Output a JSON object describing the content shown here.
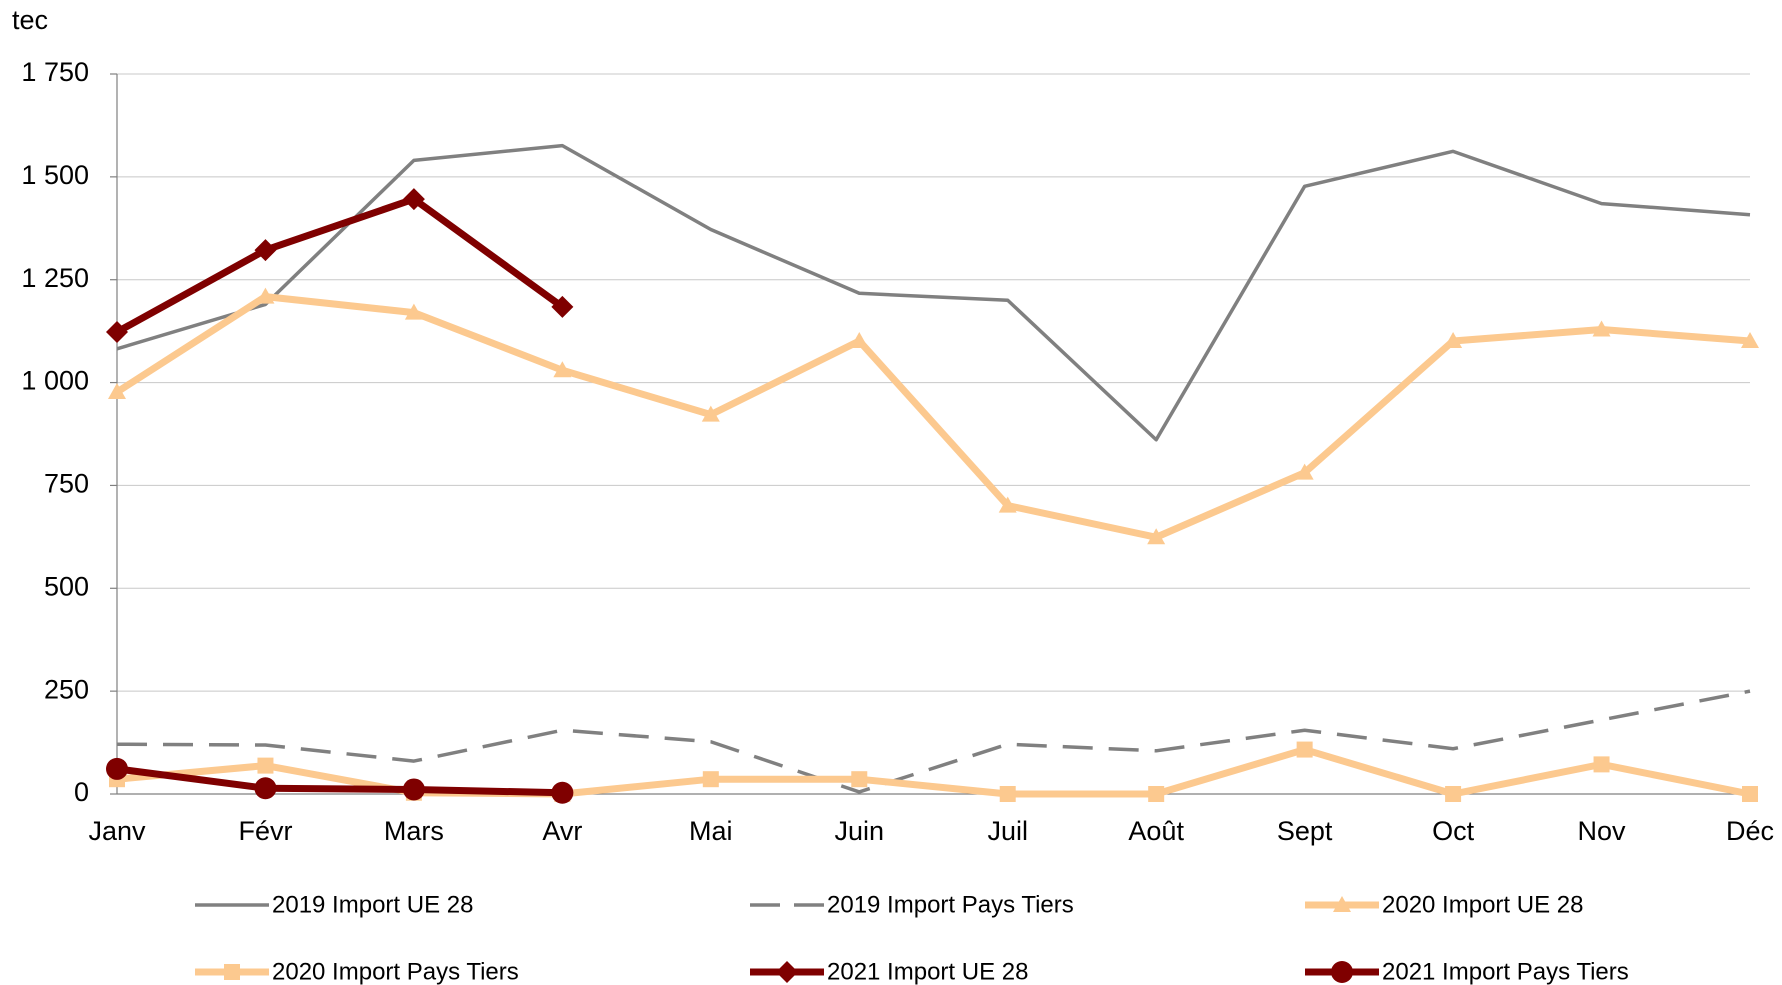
{
  "chart_data": {
    "type": "line",
    "y_label": "tec",
    "categories": [
      "Janv",
      "Févr",
      "Mars",
      "Avr",
      "Mai",
      "Juin",
      "Juil",
      "Août",
      "Sept",
      "Oct",
      "Nov",
      "Déc"
    ],
    "ylim": [
      0,
      1750
    ],
    "yticks": [
      0,
      250,
      500,
      750,
      {
        "value": 1000,
        "label": "1 000"
      },
      {
        "value": 1250,
        "label": "1 250"
      },
      {
        "value": 1500,
        "label": "1 500"
      },
      {
        "value": 1750,
        "label": "1 750"
      }
    ],
    "grid": true,
    "legend": "bottom",
    "series": [
      {
        "name": "2019 Import UE 28",
        "color": "#808080",
        "dash": "solid",
        "marker": "none",
        "values": [
          1082,
          1190,
          1540,
          1576,
          1372,
          1217,
          1200,
          861,
          1477,
          1562,
          1435,
          1408
        ]
      },
      {
        "name": "2019 Import Pays Tiers",
        "color": "#808080",
        "dash": "dashed",
        "marker": "none",
        "values": [
          121,
          119,
          80,
          155,
          127,
          5,
          121,
          105,
          155,
          110,
          180,
          250
        ]
      },
      {
        "name": "2020 Import UE 28",
        "color": "#fcc98f",
        "dash": "solid",
        "marker": "triangle",
        "values": [
          977,
          1209,
          1170,
          1030,
          922,
          1101,
          701,
          624,
          781,
          1101,
          1129,
          1101
        ]
      },
      {
        "name": "2020 Import Pays Tiers",
        "color": "#fcc98f",
        "dash": "solid",
        "marker": "square",
        "values": [
          36,
          69,
          3,
          0,
          36,
          36,
          0,
          0,
          108,
          0,
          72,
          0
        ]
      },
      {
        "name": "2021 Import UE 28",
        "color": "#7f0000",
        "dash": "solid",
        "marker": "diamond",
        "values": [
          1123,
          1322,
          1446,
          1184,
          null,
          null,
          null,
          null,
          null,
          null,
          null,
          null
        ]
      },
      {
        "name": "2021 Import Pays Tiers",
        "color": "#7f0000",
        "dash": "solid",
        "marker": "circle",
        "values": [
          61,
          14,
          11,
          3,
          null,
          null,
          null,
          null,
          null,
          null,
          null,
          null
        ]
      }
    ]
  }
}
